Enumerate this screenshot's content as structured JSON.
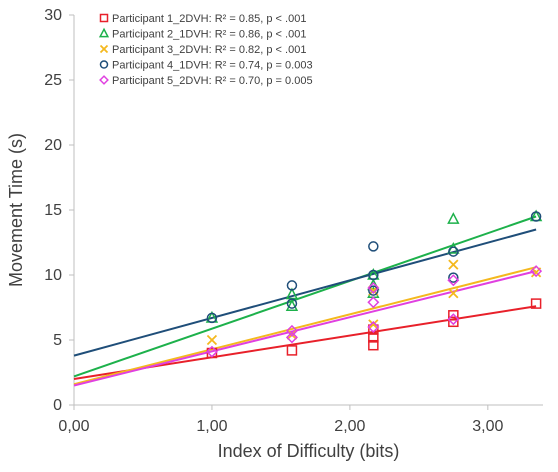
{
  "chart_data": {
    "type": "scatter",
    "title": "",
    "xlabel": "Index of Difficulty (bits)",
    "ylabel": "Movement Time (s)",
    "xlim": [
      0,
      3.4
    ],
    "ylim": [
      0,
      30
    ],
    "x_ticks": [
      0,
      1,
      2,
      3
    ],
    "x_tick_labels": [
      "0,00",
      "1,00",
      "2,00",
      "3,00"
    ],
    "y_ticks": [
      0,
      5,
      10,
      15,
      20,
      25,
      30
    ],
    "y_tick_labels": [
      "0",
      "5",
      "10",
      "15",
      "20",
      "25",
      "30"
    ],
    "grid": false,
    "legend_position": "top-left",
    "series": [
      {
        "name": "Participant 1_2DVH: R² = 0.85, p < .001",
        "marker": "square",
        "color": "#e8202a",
        "points": [
          [
            1.0,
            4.0
          ],
          [
            1.58,
            4.2
          ],
          [
            2.17,
            4.6
          ],
          [
            2.17,
            5.2
          ],
          [
            2.17,
            5.8
          ],
          [
            2.75,
            6.4
          ],
          [
            2.75,
            6.9
          ],
          [
            3.35,
            7.8
          ]
        ],
        "trendline": [
          [
            0,
            2.0
          ],
          [
            3.35,
            7.6
          ]
        ]
      },
      {
        "name": "Participant 2_1DVH: R² = 0.86, p < .001",
        "marker": "triangle",
        "color": "#1db14b",
        "points": [
          [
            1.0,
            6.7
          ],
          [
            1.58,
            7.6
          ],
          [
            1.58,
            8.5
          ],
          [
            2.17,
            8.6
          ],
          [
            2.17,
            9.2
          ],
          [
            2.17,
            10.0
          ],
          [
            2.75,
            12.0
          ],
          [
            2.75,
            14.3
          ],
          [
            3.35,
            14.5
          ]
        ],
        "trendline": [
          [
            0,
            2.2
          ],
          [
            3.35,
            14.5
          ]
        ]
      },
      {
        "name": "Participant 3_2DVH: R² = 0.82, p < .001",
        "marker": "x",
        "color": "#f4b81e",
        "points": [
          [
            1.0,
            5.0
          ],
          [
            1.58,
            5.4
          ],
          [
            2.17,
            6.2
          ],
          [
            2.17,
            8.8
          ],
          [
            2.75,
            8.6
          ],
          [
            2.75,
            10.8
          ],
          [
            3.35,
            10.2
          ]
        ],
        "trendline": [
          [
            0,
            1.6
          ],
          [
            3.35,
            10.6
          ]
        ]
      },
      {
        "name": "Participant 4_1DVH: R² = 0.74, p = 0.003",
        "marker": "circle",
        "color": "#1f4e79",
        "points": [
          [
            1.0,
            6.7
          ],
          [
            1.58,
            7.8
          ],
          [
            1.58,
            9.2
          ],
          [
            2.17,
            8.8
          ],
          [
            2.17,
            10.0
          ],
          [
            2.17,
            12.2
          ],
          [
            2.75,
            9.8
          ],
          [
            2.75,
            11.8
          ],
          [
            3.35,
            14.5
          ]
        ],
        "trendline": [
          [
            0,
            3.8
          ],
          [
            3.35,
            13.5
          ]
        ]
      },
      {
        "name": "Participant 5_2DVH: R² = 0.70, p = 0.005",
        "marker": "diamond",
        "color": "#e040e0",
        "points": [
          [
            1.0,
            4.1
          ],
          [
            1.58,
            5.2
          ],
          [
            1.58,
            5.7
          ],
          [
            2.17,
            6.0
          ],
          [
            2.17,
            7.9
          ],
          [
            2.17,
            9.0
          ],
          [
            2.75,
            6.6
          ],
          [
            2.75,
            9.6
          ],
          [
            3.35,
            10.3
          ]
        ],
        "trendline": [
          [
            0,
            1.5
          ],
          [
            3.35,
            10.3
          ]
        ]
      }
    ]
  }
}
